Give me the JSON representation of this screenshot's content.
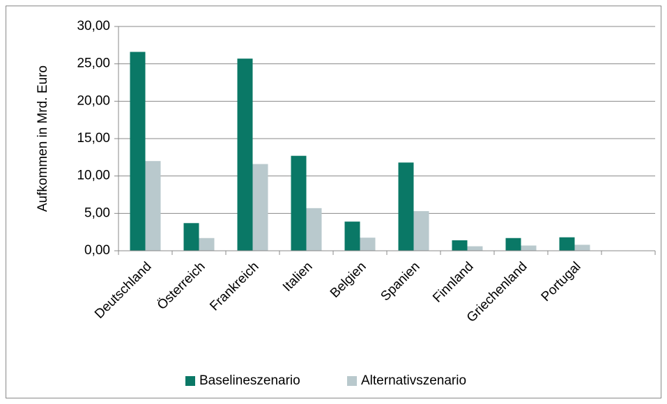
{
  "chart_data": {
    "type": "bar",
    "y_label": "Aufkommen in Mrd. Euro",
    "categories": [
      "Deutschland",
      "Österreich",
      "Frankreich",
      "Italien",
      "Belgien",
      "Spanien",
      "Finnland",
      "Griechenland",
      "Portugal",
      null
    ],
    "series": [
      {
        "name": "Baselineszenario",
        "color": "#0a7866",
        "values": [
          26.6,
          3.7,
          25.7,
          12.7,
          3.9,
          11.8,
          1.4,
          1.7,
          1.8,
          null
        ]
      },
      {
        "name": "Alternativszenario",
        "color": "#b9c9cd",
        "values": [
          12.0,
          1.7,
          11.6,
          5.7,
          1.75,
          5.3,
          0.6,
          0.7,
          0.8,
          null
        ]
      }
    ],
    "ylim": [
      0,
      30
    ],
    "yticks": [
      {
        "value": 0,
        "label": "0,00"
      },
      {
        "value": 5,
        "label": "5,00"
      },
      {
        "value": 10,
        "label": "10,00"
      },
      {
        "value": 15,
        "label": "15,00"
      },
      {
        "value": 20,
        "label": "20,00"
      },
      {
        "value": 25,
        "label": "25,00"
      },
      {
        "value": 30,
        "label": "30,00"
      }
    ],
    "grid": true,
    "legend": "bottom"
  }
}
